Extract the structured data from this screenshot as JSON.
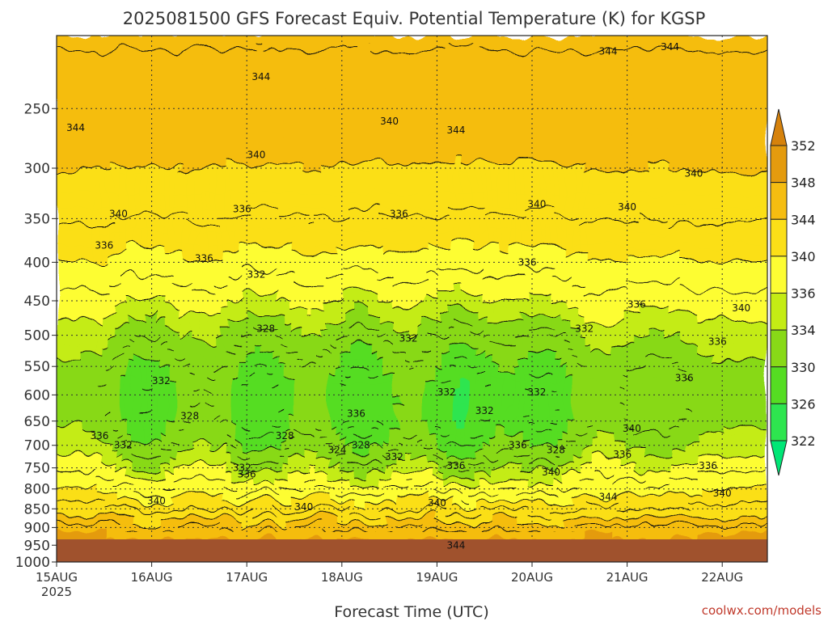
{
  "chart_data": {
    "type": "heatmap",
    "title": "2025081500 GFS Forecast Equiv. Potential Temperature (K) for KGSP",
    "xlabel": "Forecast Time (UTC)",
    "ylabel": "",
    "x_ticks": [
      "15AUG",
      "16AUG",
      "17AUG",
      "18AUG",
      "19AUG",
      "20AUG",
      "21AUG",
      "22AUG"
    ],
    "x_year": "2025",
    "y_ticks": [
      250,
      300,
      350,
      400,
      450,
      500,
      550,
      600,
      650,
      700,
      750,
      800,
      850,
      900,
      950,
      1000
    ],
    "y_tick_labels": [
      "250",
      "300",
      "350",
      "400",
      "450",
      "500",
      "550",
      "600",
      "650",
      "700",
      "750",
      "800",
      "850",
      "900",
      "950",
      "1000"
    ],
    "ylim": [
      1000,
      200
    ],
    "y_scale": "log-pressure",
    "grid": true,
    "colorbar": {
      "levels": [
        322,
        326,
        330,
        334,
        336,
        340,
        344,
        348,
        352
      ],
      "labels": [
        "322",
        "326",
        "330",
        "334",
        "336",
        "340",
        "344",
        "348",
        "352"
      ],
      "colors": [
        "#00e676",
        "#2ee54f",
        "#55dd22",
        "#88d917",
        "#c4ec14",
        "#fdfd33",
        "#fbdf18",
        "#f5bd11",
        "#e49b0e",
        "#d6820c"
      ]
    },
    "contour_labels": [
      {
        "text": "344",
        "day": 0.2,
        "p": 265
      },
      {
        "text": "344",
        "day": 2.15,
        "p": 227
      },
      {
        "text": "344",
        "day": 4.2,
        "p": 267
      },
      {
        "text": "344",
        "day": 5.8,
        "p": 210
      },
      {
        "text": "344",
        "day": 6.45,
        "p": 207
      },
      {
        "text": "340",
        "day": 3.5,
        "p": 260
      },
      {
        "text": "340",
        "day": 2.1,
        "p": 288
      },
      {
        "text": "340",
        "day": 5.05,
        "p": 335
      },
      {
        "text": "340",
        "day": 6.0,
        "p": 338
      },
      {
        "text": "340",
        "day": 6.7,
        "p": 305
      },
      {
        "text": "340",
        "day": 7.2,
        "p": 460
      },
      {
        "text": "340",
        "day": 0.65,
        "p": 345
      },
      {
        "text": "336",
        "day": 0.5,
        "p": 380
      },
      {
        "text": "336",
        "day": 1.55,
        "p": 395
      },
      {
        "text": "336",
        "day": 1.95,
        "p": 340
      },
      {
        "text": "336",
        "day": 3.6,
        "p": 345
      },
      {
        "text": "336",
        "day": 4.95,
        "p": 400
      },
      {
        "text": "336",
        "day": 6.1,
        "p": 455
      },
      {
        "text": "336",
        "day": 6.95,
        "p": 510
      },
      {
        "text": "336",
        "day": 6.6,
        "p": 570
      },
      {
        "text": "336",
        "day": 0.45,
        "p": 680
      },
      {
        "text": "336",
        "day": 3.15,
        "p": 635
      },
      {
        "text": "336",
        "day": 4.85,
        "p": 700
      },
      {
        "text": "336",
        "day": 5.95,
        "p": 720
      },
      {
        "text": "336",
        "day": 4.2,
        "p": 745
      },
      {
        "text": "336",
        "day": 6.85,
        "p": 745
      },
      {
        "text": "336",
        "day": 2.0,
        "p": 765
      },
      {
        "text": "332",
        "day": 2.1,
        "p": 415
      },
      {
        "text": "332",
        "day": 3.7,
        "p": 505
      },
      {
        "text": "332",
        "day": 1.1,
        "p": 575
      },
      {
        "text": "332",
        "day": 4.1,
        "p": 595
      },
      {
        "text": "332",
        "day": 4.5,
        "p": 630
      },
      {
        "text": "332",
        "day": 5.05,
        "p": 595
      },
      {
        "text": "332",
        "day": 5.55,
        "p": 490
      },
      {
        "text": "332",
        "day": 0.7,
        "p": 700
      },
      {
        "text": "332",
        "day": 3.55,
        "p": 725
      },
      {
        "text": "332",
        "day": 1.95,
        "p": 750
      },
      {
        "text": "328",
        "day": 2.2,
        "p": 490
      },
      {
        "text": "328",
        "day": 1.4,
        "p": 640
      },
      {
        "text": "328",
        "day": 2.4,
        "p": 680
      },
      {
        "text": "328",
        "day": 3.2,
        "p": 700
      },
      {
        "text": "328",
        "day": 5.25,
        "p": 710
      },
      {
        "text": "324",
        "day": 2.95,
        "p": 710
      },
      {
        "text": "340",
        "day": 1.05,
        "p": 830
      },
      {
        "text": "340",
        "day": 2.6,
        "p": 845
      },
      {
        "text": "340",
        "day": 4.0,
        "p": 835
      },
      {
        "text": "340",
        "day": 5.2,
        "p": 760
      },
      {
        "text": "340",
        "day": 7.0,
        "p": 810
      },
      {
        "text": "340",
        "day": 6.05,
        "p": 665
      },
      {
        "text": "344",
        "day": 5.8,
        "p": 820
      },
      {
        "text": "344",
        "day": 4.2,
        "p": 950
      }
    ]
  },
  "credit": "coolwx.com/models"
}
